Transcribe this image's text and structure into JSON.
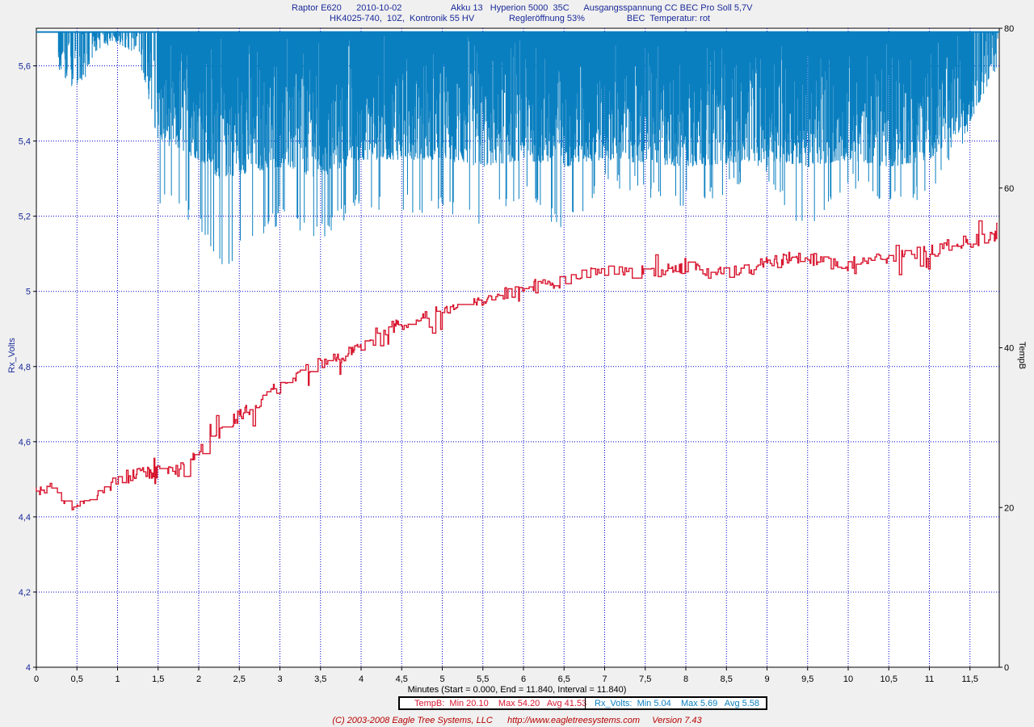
{
  "header": {
    "line1": "Raptor E620      2010-10-02                    Akku 13   Hyperion 5000  35C      Ausgangsspannung CC BEC Pro Soll 5,7V",
    "line2": "HK4025-740,  10Z,  Kontronik 55 HV              Regleröffnung 53%                 BEC  Temperatur: rot"
  },
  "colors": {
    "rx_volts": "#0a7fc0",
    "tempb": "#d8162f",
    "grid": "#0000cc",
    "left_axis_text": "#1a2a9a",
    "footer": "#b80000"
  },
  "chart_data": {
    "type": "line",
    "x_label": "Minutes (Start = 0.000,  End = 11.840,  Interval =  11.840)",
    "x_range": [
      0,
      11.84
    ],
    "x_ticks": [
      "0",
      "0,5",
      "1",
      "1,5",
      "2",
      "2,5",
      "3",
      "3,5",
      "4",
      "4,5",
      "5",
      "5,5",
      "6",
      "6,5",
      "7",
      "7,5",
      "8",
      "8,5",
      "9",
      "9,5",
      "10",
      "10,5",
      "11",
      "11,5"
    ],
    "y_left": {
      "label": "Rx_Volts",
      "range": [
        4,
        5.7
      ],
      "ticks": [
        "4",
        "4,2",
        "4,4",
        "4,6",
        "4,8",
        "5",
        "5,2",
        "5,4",
        "5,6"
      ]
    },
    "y_right": {
      "label": "TempB",
      "range": [
        0,
        80
      ],
      "ticks": [
        "0",
        "20",
        "40",
        "60",
        "80"
      ]
    },
    "grid": true,
    "series": [
      {
        "name": "Rx_Volts",
        "axis": "left",
        "baseline": 5.69,
        "x": [
          0,
          0.25,
          0.5,
          0.75,
          1.0,
          1.25,
          1.5,
          2.0,
          2.25,
          3.0,
          3.5,
          4.0,
          5.0,
          5.5,
          6.0,
          6.5,
          7.0,
          8.0,
          9.0,
          9.5,
          10.0,
          10.5,
          11.0,
          11.5,
          11.84
        ],
        "min_envelope": [
          5.69,
          5.49,
          5.38,
          5.6,
          5.62,
          5.6,
          5.22,
          5.18,
          5.04,
          5.18,
          5.13,
          5.22,
          5.2,
          5.16,
          5.25,
          5.14,
          5.28,
          5.22,
          5.3,
          5.12,
          5.27,
          5.22,
          5.24,
          5.42,
          5.52
        ],
        "typical_low": [
          5.69,
          5.6,
          5.52,
          5.64,
          5.66,
          5.63,
          5.4,
          5.35,
          5.3,
          5.33,
          5.3,
          5.35,
          5.35,
          5.33,
          5.35,
          5.33,
          5.35,
          5.33,
          5.35,
          5.33,
          5.35,
          5.33,
          5.35,
          5.45,
          5.6
        ]
      },
      {
        "name": "TempB",
        "axis": "right",
        "x": [
          0,
          0.25,
          0.3,
          0.5,
          0.7,
          0.85,
          1.0,
          1.1,
          1.5,
          1.7,
          1.8,
          2.0,
          2.2,
          2.5,
          2.8,
          3.0,
          3.3,
          3.5,
          3.8,
          4.0,
          4.2,
          4.5,
          4.7,
          5.0,
          5.2,
          5.5,
          5.7,
          6.0,
          6.3,
          6.5,
          6.8,
          7.0,
          7.5,
          8.0,
          8.5,
          8.8,
          9.0,
          9.3,
          9.6,
          10.0,
          10.3,
          10.6,
          11.0,
          11.3,
          11.6,
          11.84
        ],
        "y": [
          22.5,
          22.5,
          20.1,
          20.5,
          21.5,
          22.0,
          23.5,
          24.0,
          24.5,
          24.5,
          25.0,
          26.8,
          29.0,
          31.5,
          33.5,
          35.0,
          37.0,
          38.0,
          39.0,
          40.5,
          42.0,
          43.0,
          43.8,
          44.5,
          45.5,
          45.5,
          46.5,
          47.5,
          47.8,
          48.5,
          49.3,
          49.5,
          49.5,
          50.0,
          49.5,
          49.8,
          51.0,
          51.3,
          51.0,
          50.0,
          51.0,
          51.5,
          52.0,
          53.0,
          53.5,
          54.0
        ]
      }
    ]
  },
  "legend": {
    "tempb": "TempB:  Min 20.10    Max 54.20   Avg 41.53",
    "rx_volts": "Rx_Volts:  Min 5.04    Max 5.69   Avg 5.58"
  },
  "footer": "(C) 2003-2008 Eagle Tree Systems, LLC      http://www.eagletreesystems.com     Version 7.43"
}
